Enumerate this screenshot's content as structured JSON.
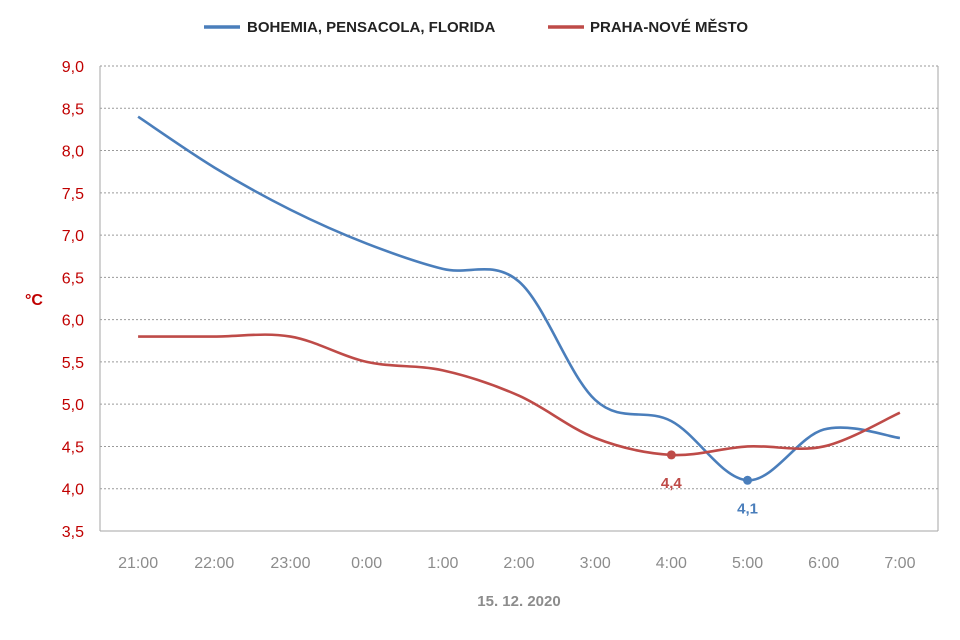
{
  "chart_data": {
    "type": "line",
    "categories": [
      "21:00",
      "22:00",
      "23:00",
      "0:00",
      "1:00",
      "2:00",
      "3:00",
      "4:00",
      "5:00",
      "6:00",
      "7:00"
    ],
    "series": [
      {
        "name": "BOHEMIA, PENSACOLA, FLORIDA",
        "color": "#4a7ebb",
        "values": [
          8.4,
          7.8,
          7.3,
          6.9,
          6.6,
          6.45,
          5.05,
          4.8,
          4.1,
          4.7,
          4.6
        ]
      },
      {
        "name": "PRAHA-NOVÉ MĚSTO",
        "color": "#be4b48",
        "values": [
          5.8,
          5.8,
          5.8,
          5.5,
          5.4,
          5.1,
          4.6,
          4.4,
          4.5,
          4.5,
          4.9
        ]
      }
    ],
    "annotations": [
      {
        "series": 1,
        "index": 7,
        "text": "4,4"
      },
      {
        "series": 0,
        "index": 8,
        "text": "4,1"
      }
    ],
    "ylabel": "°C",
    "xlabel": "15. 12. 2020",
    "ylim": [
      3.5,
      9.0
    ],
    "ystep": 0.5,
    "y_tick_labels": [
      "3,5",
      "4,0",
      "4,5",
      "5,0",
      "5,5",
      "6,0",
      "6,5",
      "7,0",
      "7,5",
      "8,0",
      "8,5",
      "9,0"
    ],
    "y_tick_color": "#c00000",
    "grid": "horizontal-dotted",
    "legend_position": "top-center"
  }
}
